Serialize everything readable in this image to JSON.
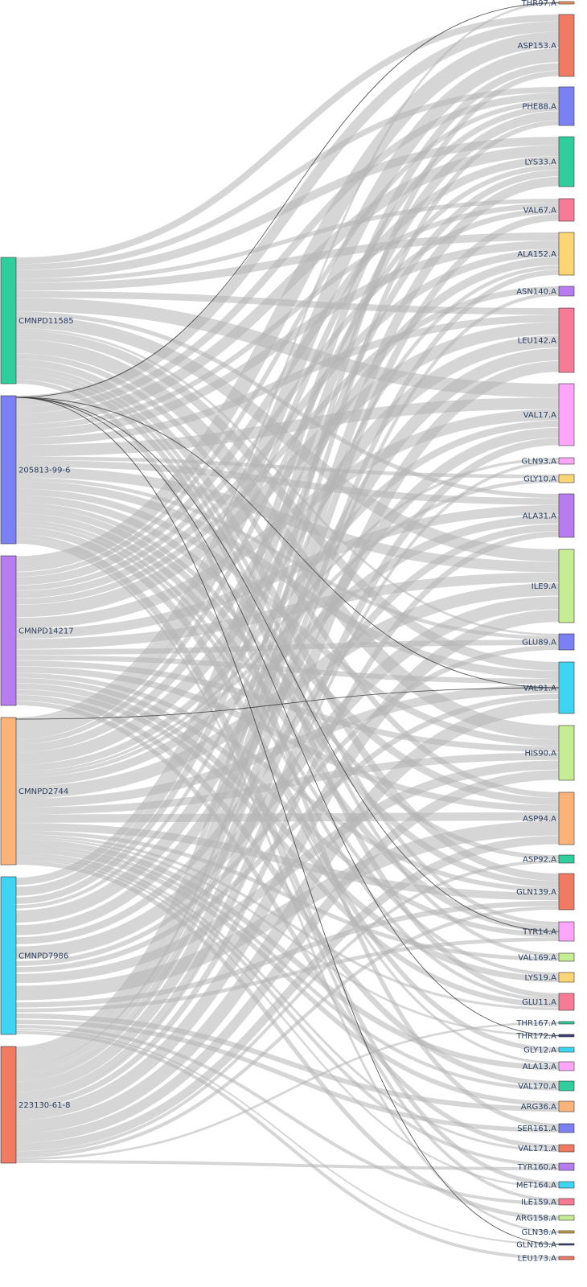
{
  "chart_data": {
    "type": "sankey",
    "source_nodes": [
      {
        "name": "CMNPD11585",
        "color": "#2fce9c"
      },
      {
        "name": "205813-99-6",
        "color": "#7b80f2"
      },
      {
        "name": "CMNPD14217",
        "color": "#b77cf0"
      },
      {
        "name": "CMNPD2744",
        "color": "#fcb37a"
      },
      {
        "name": "CMNPD7986",
        "color": "#3dd5f1"
      },
      {
        "name": "223130-61-8",
        "color": "#f17a63"
      }
    ],
    "target_nodes": [
      {
        "name": "THR97.A",
        "color": "#f2955f"
      },
      {
        "name": "ASP153.A",
        "color": "#f17a63"
      },
      {
        "name": "PHE88.A",
        "color": "#7b80f2"
      },
      {
        "name": "LYS33.A",
        "color": "#2fce9c"
      },
      {
        "name": "VAL67.A",
        "color": "#f77b95"
      },
      {
        "name": "ALA152.A",
        "color": "#fcd574"
      },
      {
        "name": "ASN140.A",
        "color": "#b77cf0"
      },
      {
        "name": "LEU142.A",
        "color": "#f77b95"
      },
      {
        "name": "VAL17.A",
        "color": "#ffa6fa"
      },
      {
        "name": "GLN93.A",
        "color": "#ffa6fa"
      },
      {
        "name": "GLY10.A",
        "color": "#fcd574"
      },
      {
        "name": "ALA31.A",
        "color": "#b77cf0"
      },
      {
        "name": "ILE9.A",
        "color": "#c6ed93"
      },
      {
        "name": "GLU89.A",
        "color": "#7b80f2"
      },
      {
        "name": "VAL91.A",
        "color": "#3dd5f1"
      },
      {
        "name": "HIS90.A",
        "color": "#c6ed93"
      },
      {
        "name": "ASP94.A",
        "color": "#fcb37a"
      },
      {
        "name": "ASP92.A",
        "color": "#2fce9c"
      },
      {
        "name": "GLN139.A",
        "color": "#f17a63"
      },
      {
        "name": "TYR14.A",
        "color": "#ffa6fa"
      },
      {
        "name": "VAL169.A",
        "color": "#c6ed93"
      },
      {
        "name": "LYS19.A",
        "color": "#fcd574"
      },
      {
        "name": "GLU11.A",
        "color": "#f77b95"
      },
      {
        "name": "THR167.A",
        "color": "#2fce9c"
      },
      {
        "name": "THR172.A",
        "color": "#3a3f7a"
      },
      {
        "name": "GLY12.A",
        "color": "#3dd5f1"
      },
      {
        "name": "ALA13.A",
        "color": "#ffa6fa"
      },
      {
        "name": "VAL170.A",
        "color": "#2fce9c"
      },
      {
        "name": "ARG36.A",
        "color": "#fcb37a"
      },
      {
        "name": "SER161.A",
        "color": "#7b80f2"
      },
      {
        "name": "VAL171.A",
        "color": "#f17a63"
      },
      {
        "name": "TYR160.A",
        "color": "#b77cf0"
      },
      {
        "name": "MET164.A",
        "color": "#3dd5f1"
      },
      {
        "name": "ILE159.A",
        "color": "#f77b95"
      },
      {
        "name": "ARG158.A",
        "color": "#c6ed93"
      },
      {
        "name": "GLN38.A",
        "color": "#c2a040"
      },
      {
        "name": "GLN163.A",
        "color": "#3a3f7a"
      },
      {
        "name": "LEU173.A",
        "color": "#f17a63"
      }
    ],
    "link_color": "#b4b4b4"
  }
}
